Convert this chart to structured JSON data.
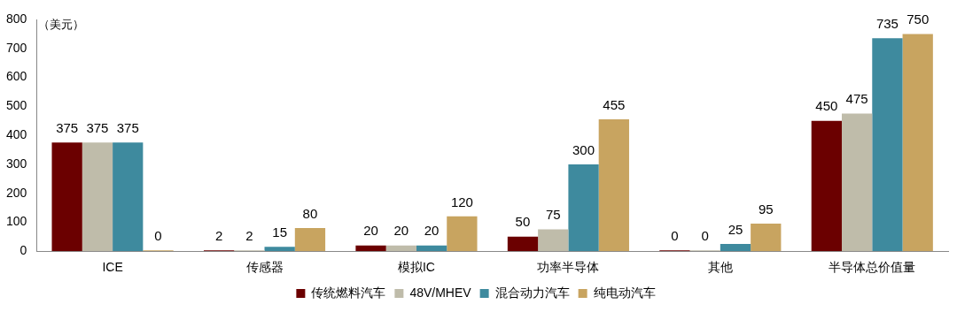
{
  "chart_data": {
    "type": "bar",
    "ylabel": "（美元）",
    "categories": [
      "ICE",
      "传感器",
      "模拟IC",
      "功率半导体",
      "其他",
      "半导体总价值量"
    ],
    "series": [
      {
        "name": "传统燃料汽车",
        "color": "#6b0000",
        "values": [
          375,
          2,
          20,
          50,
          0,
          450
        ]
      },
      {
        "name": "48V/MHEV",
        "color": "#bfbcaa",
        "values": [
          375,
          2,
          20,
          75,
          0,
          475
        ]
      },
      {
        "name": "混合动力汽车",
        "color": "#3e8a9e",
        "values": [
          375,
          15,
          20,
          300,
          25,
          735
        ]
      },
      {
        "name": "纯电动汽车",
        "color": "#c8a460",
        "values": [
          0,
          80,
          120,
          455,
          95,
          750
        ]
      }
    ],
    "ylim": [
      0,
      800
    ],
    "yticks": [
      0,
      100,
      200,
      300,
      400,
      500,
      600,
      700,
      800
    ],
    "grid": false,
    "legend": "bottom",
    "data_labels": true
  }
}
